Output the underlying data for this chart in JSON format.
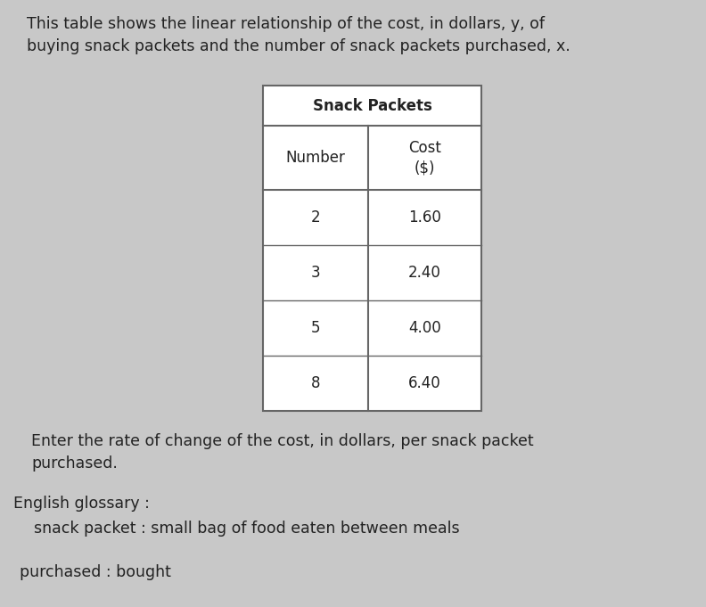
{
  "title_text": "This table shows the linear relationship of the cost, in dollars, y, of\nbuying snack packets and the number of snack packets purchased, x.",
  "table_title": "Snack Packets",
  "col_headers": [
    "Number",
    "Cost\n($)"
  ],
  "rows": [
    [
      "2",
      "1.60"
    ],
    [
      "3",
      "2.40"
    ],
    [
      "5",
      "4.00"
    ],
    [
      "8",
      "6.40"
    ]
  ],
  "question_text": "Enter the rate of change of the cost, in dollars, per snack packet\npurchased.",
  "glossary_title": "English glossary :",
  "glossary_lines": [
    "snack packet : small bag of food eaten between meals",
    "purchased : bought"
  ],
  "bg_color": "#c8c8c8",
  "table_bg": "#ffffff",
  "text_color": "#222222",
  "title_fontsize": 12.5,
  "table_fontsize": 12,
  "question_fontsize": 12.5,
  "glossary_fontsize": 12.5,
  "fig_width": 7.92,
  "fig_height": 6.81,
  "dpi": 100
}
